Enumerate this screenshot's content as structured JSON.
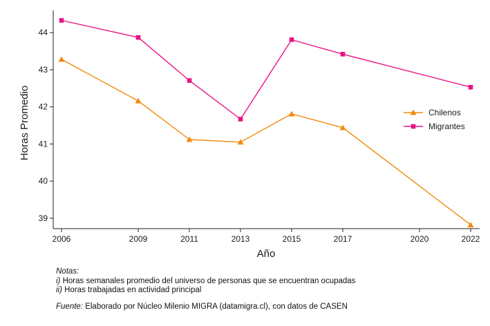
{
  "chart_data": {
    "type": "line",
    "title": "",
    "xlabel": "Año",
    "ylabel": "Horas Promedio",
    "x": [
      2006,
      2009,
      2011,
      2013,
      2015,
      2017,
      2022
    ],
    "xticks": [
      "2006",
      "2009",
      "2011",
      "2013",
      "2015",
      "2017",
      "2020",
      "2022"
    ],
    "yticks": [
      "39",
      "40",
      "41",
      "42",
      "43",
      "44"
    ],
    "xlim": [
      2006,
      2022
    ],
    "ylim": [
      38.72,
      44.6
    ],
    "grid": false,
    "legend_position": "right",
    "series": [
      {
        "name": "Chilenos",
        "color": "#f28a0c",
        "marker": "triangle",
        "values": [
          43.28,
          42.16,
          41.12,
          41.05,
          41.81,
          41.44,
          38.82
        ]
      },
      {
        "name": "Migrantes",
        "color": "#ea1284",
        "marker": "square",
        "values": [
          44.33,
          43.87,
          42.71,
          41.67,
          43.81,
          43.42,
          42.53
        ]
      }
    ]
  },
  "notes": {
    "heading": "Notas:",
    "items": [
      {
        "marker": "i)",
        "text": " Horas semanales promedio del universo de personas que se encuentran ocupadas"
      },
      {
        "marker": "ii)",
        "text": " Horas trabajadas en actividad principal"
      }
    ],
    "source_label": "Fuente:",
    "source_text": " Elaborado por Núcleo Milenio MIGRA (datamigra.cl), con datos de CASEN"
  }
}
